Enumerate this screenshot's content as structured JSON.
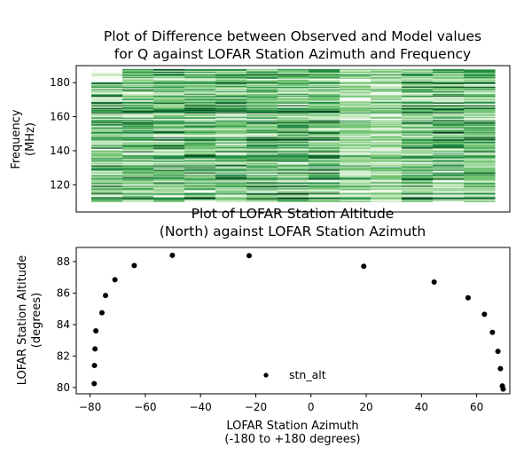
{
  "chart_data": [
    {
      "type": "heatmap",
      "title_lines": [
        "Plot of Difference between Observed and Model values",
        "for Q against LOFAR Station Azimuth and Frequency"
      ],
      "xlabel": "",
      "ylabel_lines": [
        "Frequency",
        "(MHz)"
      ],
      "ylim": [
        104,
        190
      ],
      "yticks": [
        120,
        140,
        160,
        180
      ],
      "colormap": "Greens",
      "x_range": [
        -80,
        70
      ],
      "frequency_range": [
        110,
        188
      ],
      "colors": [
        "#f7fcf5",
        "#c7e9c0",
        "#74c476",
        "#238b45",
        "#00441b"
      ]
    },
    {
      "type": "scatter",
      "title_lines": [
        "Plot of LOFAR Station Altitude",
        "(North) against LOFAR Station Azimuth"
      ],
      "xlabel_lines": [
        "LOFAR Station Azimuth",
        "(-180 to +180 degrees)"
      ],
      "ylabel_lines": [
        "LOFAR Station Altitude",
        "(degrees)"
      ],
      "xlim": [
        -85,
        72
      ],
      "ylim": [
        79.6,
        88.9
      ],
      "xticks": [
        -80,
        -60,
        -40,
        -20,
        0,
        20,
        40,
        60
      ],
      "xtick_labels": [
        "−80",
        "−60",
        "−40",
        "−20",
        "0",
        "20",
        "40",
        "60"
      ],
      "yticks": [
        80,
        82,
        84,
        86,
        88
      ],
      "legend": {
        "label": "stn_alt",
        "position": "lower center"
      },
      "series": [
        {
          "name": "stn_alt",
          "color": "#000000",
          "x": [
            -78.5,
            -78.4,
            -78.2,
            -77.9,
            -75.7,
            -74.4,
            -71.0,
            -64.0,
            -50.2,
            -22.4,
            19.1,
            44.6,
            56.9,
            62.8,
            65.7,
            67.7,
            68.6,
            69.3,
            69.6
          ],
          "y": [
            80.25,
            81.4,
            82.45,
            83.6,
            84.75,
            85.85,
            86.85,
            87.75,
            88.4,
            88.38,
            87.7,
            86.7,
            85.7,
            84.65,
            83.5,
            82.3,
            81.2,
            80.1,
            79.9
          ]
        }
      ]
    }
  ]
}
